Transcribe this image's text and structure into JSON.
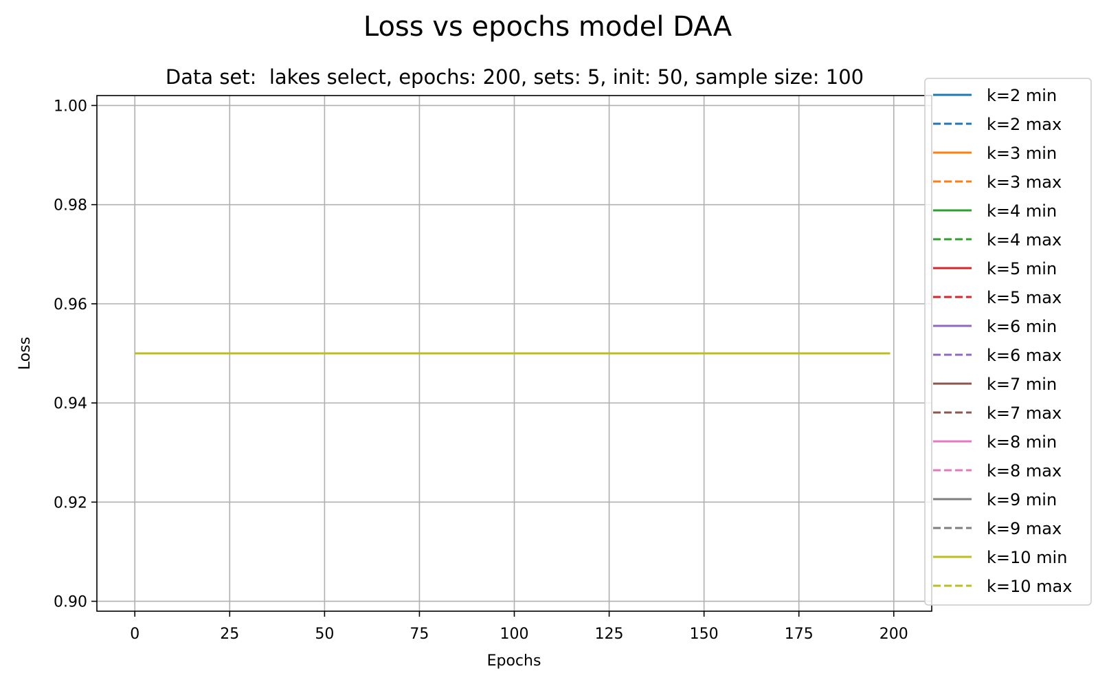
{
  "chart_data": {
    "type": "line",
    "title": "Loss vs epochs model DAA",
    "subtitle": "Data set:  lakes select, epochs: 200, sets: 5, init: 50, sample size: 100",
    "xlabel": "Epochs",
    "ylabel": "Loss",
    "xlim": [
      -10,
      210
    ],
    "ylim": [
      0.898,
      1.002
    ],
    "xticks": [
      0,
      25,
      50,
      75,
      100,
      125,
      150,
      175,
      200
    ],
    "yticks": [
      0.9,
      0.92,
      0.94,
      0.96,
      0.98,
      1.0
    ],
    "xtick_labels": [
      "0",
      "25",
      "50",
      "75",
      "100",
      "125",
      "150",
      "175",
      "200"
    ],
    "ytick_labels": [
      "0.90",
      "0.92",
      "0.94",
      "0.96",
      "0.98",
      "1.00"
    ],
    "grid": true,
    "legend_position": "right",
    "x": [
      0,
      199
    ],
    "series": [
      {
        "name": "k=2 min",
        "color": "#1f77b4",
        "dash": "solid",
        "values": [
          0.95,
          0.95
        ]
      },
      {
        "name": "k=2 max",
        "color": "#1f77b4",
        "dash": "dashed",
        "values": [
          0.95,
          0.95
        ]
      },
      {
        "name": "k=3 min",
        "color": "#ff7f0e",
        "dash": "solid",
        "values": [
          0.95,
          0.95
        ]
      },
      {
        "name": "k=3 max",
        "color": "#ff7f0e",
        "dash": "dashed",
        "values": [
          0.95,
          0.95
        ]
      },
      {
        "name": "k=4 min",
        "color": "#2ca02c",
        "dash": "solid",
        "values": [
          0.95,
          0.95
        ]
      },
      {
        "name": "k=4 max",
        "color": "#2ca02c",
        "dash": "dashed",
        "values": [
          0.95,
          0.95
        ]
      },
      {
        "name": "k=5 min",
        "color": "#d62728",
        "dash": "solid",
        "values": [
          0.95,
          0.95
        ]
      },
      {
        "name": "k=5 max",
        "color": "#d62728",
        "dash": "dashed",
        "values": [
          0.95,
          0.95
        ]
      },
      {
        "name": "k=6 min",
        "color": "#9467bd",
        "dash": "solid",
        "values": [
          0.95,
          0.95
        ]
      },
      {
        "name": "k=6 max",
        "color": "#9467bd",
        "dash": "dashed",
        "values": [
          0.95,
          0.95
        ]
      },
      {
        "name": "k=7 min",
        "color": "#8c564b",
        "dash": "solid",
        "values": [
          0.95,
          0.95
        ]
      },
      {
        "name": "k=7 max",
        "color": "#8c564b",
        "dash": "dashed",
        "values": [
          0.95,
          0.95
        ]
      },
      {
        "name": "k=8 min",
        "color": "#e377c2",
        "dash": "solid",
        "values": [
          0.95,
          0.95
        ]
      },
      {
        "name": "k=8 max",
        "color": "#e377c2",
        "dash": "dashed",
        "values": [
          0.95,
          0.95
        ]
      },
      {
        "name": "k=9 min",
        "color": "#7f7f7f",
        "dash": "solid",
        "values": [
          0.95,
          0.95
        ]
      },
      {
        "name": "k=9 max",
        "color": "#7f7f7f",
        "dash": "dashed",
        "values": [
          0.95,
          0.95
        ]
      },
      {
        "name": "k=10 min",
        "color": "#bcbd22",
        "dash": "solid",
        "values": [
          0.95,
          0.95
        ]
      },
      {
        "name": "k=10 max",
        "color": "#bcbd22",
        "dash": "dashed",
        "values": [
          0.95,
          0.95
        ]
      }
    ]
  }
}
